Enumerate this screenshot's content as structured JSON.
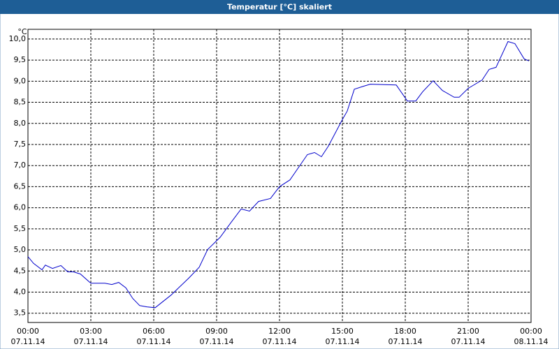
{
  "chart_data": {
    "type": "line",
    "title": "Temperatur [°C] skaliert",
    "y_unit": "°C",
    "x": [
      0,
      0.27,
      0.67,
      0.83,
      1.17,
      1.57,
      1.9,
      2.17,
      2.5,
      3.0,
      3.67,
      4.0,
      4.33,
      4.67,
      5.0,
      5.33,
      5.67,
      6.07,
      6.83,
      7.67,
      8.17,
      8.57,
      9.17,
      9.67,
      10.17,
      10.57,
      11.0,
      11.57,
      12.0,
      12.5,
      13.33,
      13.67,
      14.0,
      14.33,
      15.0,
      15.23,
      15.57,
      16.0,
      16.33,
      17.57,
      18.1,
      18.5,
      18.83,
      19.33,
      19.77,
      20.33,
      20.57,
      21.0,
      21.67,
      22.0,
      22.33,
      22.9,
      23.23,
      23.67,
      23.9
    ],
    "series": [
      {
        "name": "Temperatur",
        "color": "#0000cc",
        "values": [
          4.84,
          4.68,
          4.53,
          4.64,
          4.56,
          4.63,
          4.48,
          4.48,
          4.43,
          4.21,
          4.21,
          4.18,
          4.23,
          4.1,
          3.85,
          3.68,
          3.65,
          3.63,
          3.93,
          4.33,
          4.59,
          5.01,
          5.3,
          5.64,
          5.97,
          5.92,
          6.15,
          6.22,
          6.5,
          6.66,
          7.26,
          7.31,
          7.21,
          7.46,
          8.09,
          8.29,
          8.81,
          8.88,
          8.93,
          8.91,
          8.53,
          8.53,
          8.75,
          9.01,
          8.78,
          8.62,
          8.62,
          8.83,
          9.03,
          9.28,
          9.33,
          9.94,
          9.89,
          9.53,
          9.48
        ]
      }
    ],
    "xlim": [
      0,
      24
    ],
    "xticks": [
      {
        "value": 0,
        "label": "00:00"
      },
      {
        "value": 3,
        "label": "03:00"
      },
      {
        "value": 6,
        "label": "06:00"
      },
      {
        "value": 9,
        "label": "09:00"
      },
      {
        "value": 12,
        "label": "12:00"
      },
      {
        "value": 15,
        "label": "15:00"
      },
      {
        "value": 18,
        "label": "18:00"
      },
      {
        "value": 21,
        "label": "21:00"
      },
      {
        "value": 24,
        "label": "00:00"
      }
    ],
    "xtick_dates": [
      "07.11.14",
      "07.11.14",
      "07.11.14",
      "07.11.14",
      "07.11.14",
      "07.11.14",
      "07.11.14",
      "07.11.14",
      "08.11.14"
    ],
    "ylim": [
      3.28,
      10.23
    ],
    "yticks": [
      {
        "value": 3.5,
        "label": "3,5"
      },
      {
        "value": 4,
        "label": "4,0"
      },
      {
        "value": 4.5,
        "label": "4,5"
      },
      {
        "value": 5,
        "label": "5,0"
      },
      {
        "value": 5.5,
        "label": "5,5"
      },
      {
        "value": 6,
        "label": "6,0"
      },
      {
        "value": 6.5,
        "label": "6,5"
      },
      {
        "value": 7,
        "label": "7,0"
      },
      {
        "value": 7.5,
        "label": "7,5"
      },
      {
        "value": 8,
        "label": "8,0"
      },
      {
        "value": 8.5,
        "label": "8,5"
      },
      {
        "value": 9,
        "label": "9,0"
      },
      {
        "value": 9.5,
        "label": "9,5"
      },
      {
        "value": 10,
        "label": "10,0"
      }
    ],
    "grid": true
  }
}
